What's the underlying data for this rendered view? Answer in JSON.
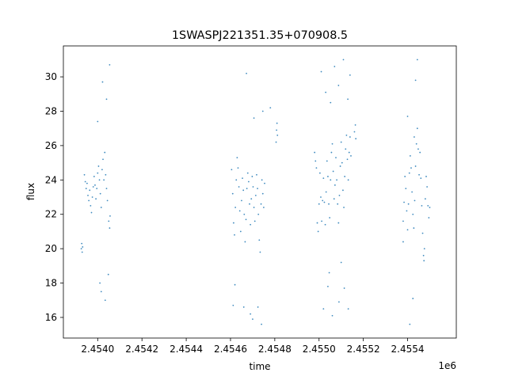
{
  "chart_data": {
    "type": "scatter",
    "title": "1SWASPJ221351.35+070908.5",
    "xlabel": "time",
    "ylabel": "flux",
    "x_offset_label": "1e6",
    "xlim": [
      2453845,
      2455620
    ],
    "ylim": [
      14.8,
      31.8
    ],
    "xticks": [
      2454000,
      2454200,
      2454400,
      2454600,
      2454800,
      2455000,
      2455200,
      2455400
    ],
    "xtick_labels": [
      "2.4540",
      "2.4542",
      "2.4544",
      "2.4546",
      "2.4548",
      "2.4550",
      "2.4552",
      "2.4554"
    ],
    "yticks": [
      16,
      18,
      20,
      22,
      24,
      26,
      28,
      30
    ],
    "ytick_labels": [
      "16",
      "18",
      "20",
      "22",
      "24",
      "26",
      "28",
      "30"
    ],
    "grid": false,
    "legend": "none",
    "marker_color": "#1f77b4",
    "series": [
      {
        "values": [
          [
            2453926,
            20.0
          ],
          [
            2453928,
            20.3
          ],
          [
            2453930,
            19.8
          ],
          [
            2453932,
            20.1
          ],
          [
            2453940,
            24.3
          ],
          [
            2453944,
            23.9
          ],
          [
            2453948,
            23.5
          ],
          [
            2453952,
            23.8
          ],
          [
            2453956,
            23.1
          ],
          [
            2453960,
            22.8
          ],
          [
            2453964,
            23.4
          ],
          [
            2453968,
            22.5
          ],
          [
            2453972,
            22.1
          ],
          [
            2453976,
            23.0
          ],
          [
            2453980,
            23.6
          ],
          [
            2453984,
            24.2
          ],
          [
            2453988,
            23.7
          ],
          [
            2453992,
            22.9
          ],
          [
            2453996,
            23.5
          ],
          [
            2454000,
            24.4
          ],
          [
            2454004,
            24.8
          ],
          [
            2454008,
            24.0
          ],
          [
            2454012,
            23.2
          ],
          [
            2454016,
            22.4
          ],
          [
            2454020,
            24.6
          ],
          [
            2454024,
            25.2
          ],
          [
            2454028,
            24.0
          ],
          [
            2454032,
            25.6
          ],
          [
            2454036,
            24.3
          ],
          [
            2454040,
            23.5
          ],
          [
            2454044,
            22.8
          ],
          [
            2454050,
            21.6
          ],
          [
            2454054,
            21.2
          ],
          [
            2454056,
            21.9
          ],
          [
            2454022,
            29.7
          ],
          [
            2454040,
            28.7
          ],
          [
            2454010,
            18.0
          ],
          [
            2454016,
            17.5
          ],
          [
            2454048,
            18.5
          ],
          [
            2454034,
            17.0
          ],
          [
            2454054,
            30.7
          ],
          [
            2454000,
            27.4
          ],
          [
            2454605,
            24.6
          ],
          [
            2454610,
            23.2
          ],
          [
            2454614,
            21.5
          ],
          [
            2454618,
            20.8
          ],
          [
            2454622,
            22.4
          ],
          [
            2454626,
            24.0
          ],
          [
            2454630,
            25.3
          ],
          [
            2454634,
            24.7
          ],
          [
            2454638,
            23.6
          ],
          [
            2454642,
            22.2
          ],
          [
            2454646,
            21.0
          ],
          [
            2454650,
            22.8
          ],
          [
            2454654,
            24.1
          ],
          [
            2454658,
            23.4
          ],
          [
            2454662,
            22.0
          ],
          [
            2454666,
            20.4
          ],
          [
            2454670,
            21.7
          ],
          [
            2454674,
            23.5
          ],
          [
            2454678,
            24.4
          ],
          [
            2454682,
            23.9
          ],
          [
            2454686,
            22.6
          ],
          [
            2454690,
            21.4
          ],
          [
            2454694,
            22.9
          ],
          [
            2454698,
            24.2
          ],
          [
            2454702,
            23.6
          ],
          [
            2454706,
            22.4
          ],
          [
            2454710,
            21.6
          ],
          [
            2454714,
            23.1
          ],
          [
            2454718,
            24.3
          ],
          [
            2454722,
            23.5
          ],
          [
            2454726,
            22.0
          ],
          [
            2454730,
            20.5
          ],
          [
            2454734,
            19.8
          ],
          [
            2454738,
            22.6
          ],
          [
            2454742,
            24.0
          ],
          [
            2454746,
            23.2
          ],
          [
            2454750,
            22.4
          ],
          [
            2454754,
            23.8
          ],
          [
            2454806,
            26.2
          ],
          [
            2454808,
            26.9
          ],
          [
            2454810,
            27.3
          ],
          [
            2454812,
            26.6
          ],
          [
            2454620,
            17.9
          ],
          [
            2454612,
            16.7
          ],
          [
            2454660,
            16.6
          ],
          [
            2454690,
            16.2
          ],
          [
            2454700,
            15.9
          ],
          [
            2454724,
            16.6
          ],
          [
            2454740,
            15.6
          ],
          [
            2454672,
            30.2
          ],
          [
            2454706,
            27.6
          ],
          [
            2454746,
            28.0
          ],
          [
            2454780,
            28.2
          ],
          [
            2454980,
            25.6
          ],
          [
            2454984,
            25.1
          ],
          [
            2454988,
            24.7
          ],
          [
            2454992,
            21.5
          ],
          [
            2454996,
            21.0
          ],
          [
            2455000,
            22.6
          ],
          [
            2455004,
            24.4
          ],
          [
            2455008,
            23.0
          ],
          [
            2455012,
            21.6
          ],
          [
            2455016,
            22.8
          ],
          [
            2455020,
            24.1
          ],
          [
            2455024,
            22.7
          ],
          [
            2455028,
            21.4
          ],
          [
            2455032,
            23.3
          ],
          [
            2455036,
            25.1
          ],
          [
            2455040,
            24.2
          ],
          [
            2455044,
            22.6
          ],
          [
            2455048,
            21.8
          ],
          [
            2455052,
            24.0
          ],
          [
            2455056,
            25.6
          ],
          [
            2455060,
            26.1
          ],
          [
            2455064,
            24.5
          ],
          [
            2455068,
            22.9
          ],
          [
            2455072,
            23.7
          ],
          [
            2455076,
            25.3
          ],
          [
            2455080,
            24.0
          ],
          [
            2455084,
            22.6
          ],
          [
            2455088,
            21.5
          ],
          [
            2455092,
            23.1
          ],
          [
            2455096,
            24.8
          ],
          [
            2455100,
            26.2
          ],
          [
            2455104,
            25.0
          ],
          [
            2455108,
            23.4
          ],
          [
            2455112,
            22.4
          ],
          [
            2455116,
            24.2
          ],
          [
            2455120,
            25.8
          ],
          [
            2455124,
            26.6
          ],
          [
            2455128,
            25.2
          ],
          [
            2455132,
            24.0
          ],
          [
            2455136,
            25.6
          ],
          [
            2455140,
            26.5
          ],
          [
            2455144,
            25.4
          ],
          [
            2455160,
            26.8
          ],
          [
            2455164,
            27.2
          ],
          [
            2455166,
            26.4
          ],
          [
            2455010,
            30.3
          ],
          [
            2455030,
            29.1
          ],
          [
            2455052,
            28.5
          ],
          [
            2455070,
            30.6
          ],
          [
            2455088,
            29.5
          ],
          [
            2455110,
            31.0
          ],
          [
            2455130,
            28.7
          ],
          [
            2455140,
            30.1
          ],
          [
            2455020,
            16.5
          ],
          [
            2455040,
            17.8
          ],
          [
            2455060,
            16.1
          ],
          [
            2455090,
            16.9
          ],
          [
            2455114,
            17.7
          ],
          [
            2455132,
            16.5
          ],
          [
            2455046,
            18.6
          ],
          [
            2455100,
            19.2
          ],
          [
            2455380,
            21.6
          ],
          [
            2455384,
            22.7
          ],
          [
            2455388,
            24.2
          ],
          [
            2455392,
            23.5
          ],
          [
            2455396,
            22.2
          ],
          [
            2455400,
            21.1
          ],
          [
            2455404,
            22.6
          ],
          [
            2455408,
            24.4
          ],
          [
            2455412,
            25.4
          ],
          [
            2455416,
            24.7
          ],
          [
            2455420,
            23.3
          ],
          [
            2455424,
            22.0
          ],
          [
            2455428,
            21.2
          ],
          [
            2455432,
            22.8
          ],
          [
            2455436,
            24.8
          ],
          [
            2455440,
            26.1
          ],
          [
            2455444,
            27.0
          ],
          [
            2455448,
            25.8
          ],
          [
            2455452,
            24.3
          ],
          [
            2455456,
            25.6
          ],
          [
            2455460,
            24.1
          ],
          [
            2455464,
            22.5
          ],
          [
            2455468,
            20.9
          ],
          [
            2455472,
            19.6
          ],
          [
            2455474,
            19.3
          ],
          [
            2455476,
            20.0
          ],
          [
            2455480,
            22.9
          ],
          [
            2455484,
            24.2
          ],
          [
            2455488,
            23.6
          ],
          [
            2455492,
            22.5
          ],
          [
            2455496,
            21.8
          ],
          [
            2455500,
            22.4
          ],
          [
            2455380,
            20.4
          ],
          [
            2455410,
            15.6
          ],
          [
            2455424,
            17.1
          ],
          [
            2455436,
            29.8
          ],
          [
            2455444,
            31.0
          ],
          [
            2455430,
            26.5
          ],
          [
            2455400,
            27.7
          ]
        ]
      }
    ]
  }
}
